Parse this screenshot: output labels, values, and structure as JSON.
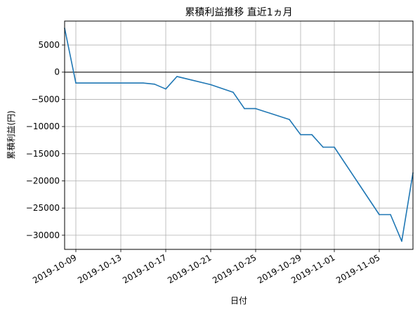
{
  "chart_data": {
    "type": "line",
    "title": "累積利益推移  直近1ヵ月",
    "xlabel": "日付",
    "ylabel": "累積利益(円)",
    "grid": true,
    "ylim": [
      -32600,
      9400
    ],
    "xlim": [
      "2019-10-08",
      "2019-11-08"
    ],
    "x_ticks": [
      "2019-10-09",
      "2019-10-13",
      "2019-10-17",
      "2019-10-21",
      "2019-10-25",
      "2019-10-29",
      "2019-11-01",
      "2019-11-05"
    ],
    "y_ticks": [
      5000,
      0,
      -5000,
      -10000,
      -15000,
      -20000,
      -25000,
      -30000
    ],
    "y_tick_labels": [
      "5000",
      "0",
      "−5000",
      "−10000",
      "−15000",
      "−20000",
      "−25000",
      "−30000"
    ],
    "zero_line": true,
    "series": [
      {
        "color": "#1f77b4",
        "points": [
          {
            "x": "2019-10-08",
            "y": 8100
          },
          {
            "x": "2019-10-09",
            "y": -2000
          },
          {
            "x": "2019-10-15",
            "y": -2000
          },
          {
            "x": "2019-10-16",
            "y": -2200
          },
          {
            "x": "2019-10-17",
            "y": -3100
          },
          {
            "x": "2019-10-18",
            "y": -800
          },
          {
            "x": "2019-10-21",
            "y": -2300
          },
          {
            "x": "2019-10-23",
            "y": -3700
          },
          {
            "x": "2019-10-24",
            "y": -6700
          },
          {
            "x": "2019-10-25",
            "y": -6700
          },
          {
            "x": "2019-10-28",
            "y": -8700
          },
          {
            "x": "2019-10-29",
            "y": -11500
          },
          {
            "x": "2019-10-30",
            "y": -11500
          },
          {
            "x": "2019-10-31",
            "y": -13800
          },
          {
            "x": "2019-11-01",
            "y": -13800
          },
          {
            "x": "2019-11-05",
            "y": -26200
          },
          {
            "x": "2019-11-06",
            "y": -26200
          },
          {
            "x": "2019-11-07",
            "y": -31100
          },
          {
            "x": "2019-11-08",
            "y": -18500
          }
        ]
      }
    ]
  }
}
